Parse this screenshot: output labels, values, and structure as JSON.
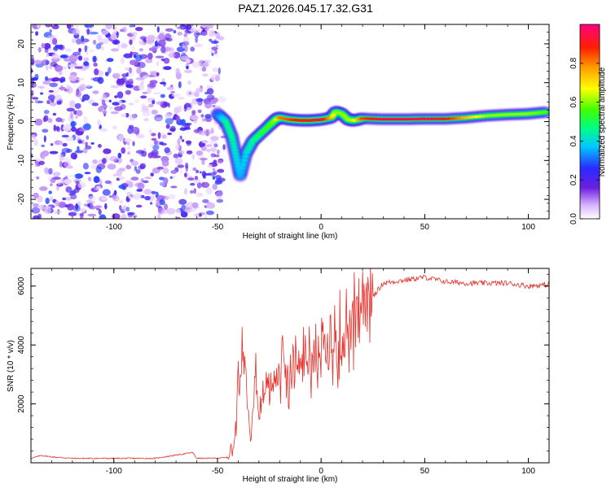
{
  "title": "PAZ1.2026.045.17.32.G31",
  "chart_data": [
    {
      "type": "heatmap",
      "title": "PAZ1.2026.045.17.32.G31",
      "xlabel": "Height of straight line (km)",
      "ylabel": "Frequency (Hz)",
      "xlim": [
        -140,
        110
      ],
      "ylim": [
        -25,
        25
      ],
      "xticks": [
        -100,
        -50,
        0,
        50,
        100
      ],
      "yticks": [
        -20,
        -10,
        0,
        10,
        20
      ],
      "xtick_labels": [
        "-100",
        "-50",
        "0",
        "50",
        "100"
      ],
      "ytick_labels": [
        "-20",
        "-10",
        "0",
        "10",
        "20"
      ],
      "noise_region": {
        "x_from": -140,
        "x_to": -48,
        "y_from": -25,
        "y_to": 25
      },
      "signal_ridge": {
        "x": [
          -50,
          -46,
          -43,
          -41,
          -39,
          -36,
          -33,
          -29,
          -25,
          -22,
          -20,
          -15,
          -10,
          -5,
          0,
          5,
          7,
          10,
          13,
          16,
          20,
          30,
          40,
          50,
          60,
          70,
          80,
          90,
          100,
          110
        ],
        "y": [
          2,
          0,
          -4,
          -9,
          -14,
          -8,
          -5,
          -3,
          -1,
          0.5,
          1,
          0.5,
          0.3,
          0.3,
          0.5,
          1,
          2.5,
          2,
          0.5,
          0.3,
          0.8,
          0.6,
          0.6,
          0.7,
          0.7,
          1.0,
          1.5,
          1.8,
          2.0,
          2.5
        ],
        "amp": [
          0.3,
          0.45,
          0.45,
          0.4,
          0.35,
          0.4,
          0.45,
          0.5,
          0.55,
          0.6,
          0.8,
          0.85,
          0.9,
          0.9,
          0.95,
          0.75,
          0.6,
          0.6,
          0.6,
          0.65,
          0.85,
          0.95,
          0.95,
          0.95,
          0.9,
          0.75,
          0.6,
          0.6,
          0.6,
          0.55
        ]
      }
    },
    {
      "type": "line",
      "xlabel": "Height of straight line (km)",
      "ylabel": "SNR (10 * v/v)",
      "xlim": [
        -140,
        110
      ],
      "ylim": [
        0,
        6600
      ],
      "xticks": [
        -100,
        -50,
        0,
        50,
        100
      ],
      "yticks": [
        2000,
        4000,
        6000
      ],
      "xtick_labels": [
        "-100",
        "-50",
        "0",
        "50",
        "100"
      ],
      "ytick_labels": [
        "2000",
        "4000",
        "6000"
      ],
      "series": [
        {
          "name": "SNR",
          "color": "#e8302a",
          "x": [
            -140,
            -135,
            -130,
            -120,
            -100,
            -80,
            -62,
            -60,
            -55,
            -50,
            -45,
            -42,
            -40,
            -38,
            -36,
            -34,
            -32,
            -30,
            -28,
            -25,
            -20,
            -15,
            -10,
            -5,
            0,
            5,
            10,
            15,
            20,
            25,
            30,
            40,
            50,
            60,
            70,
            80,
            90,
            100,
            110
          ],
          "values": [
            150,
            250,
            200,
            150,
            150,
            150,
            350,
            150,
            150,
            160,
            180,
            600,
            2500,
            4200,
            2800,
            1000,
            3000,
            1600,
            2600,
            2700,
            3000,
            3200,
            3400,
            3500,
            3700,
            3850,
            4200,
            4600,
            5150,
            5650,
            6100,
            6200,
            6300,
            6150,
            6100,
            6100,
            6100,
            6000,
            6050
          ]
        }
      ]
    }
  ],
  "colorbar": {
    "label": "Normalized spectral amplitude",
    "ticks": [
      0.0,
      0.2,
      0.4,
      0.6,
      0.8
    ],
    "tick_labels": [
      "0.0",
      "0.2",
      "0.4",
      "0.6",
      "0.8"
    ],
    "range": [
      0,
      1
    ]
  }
}
